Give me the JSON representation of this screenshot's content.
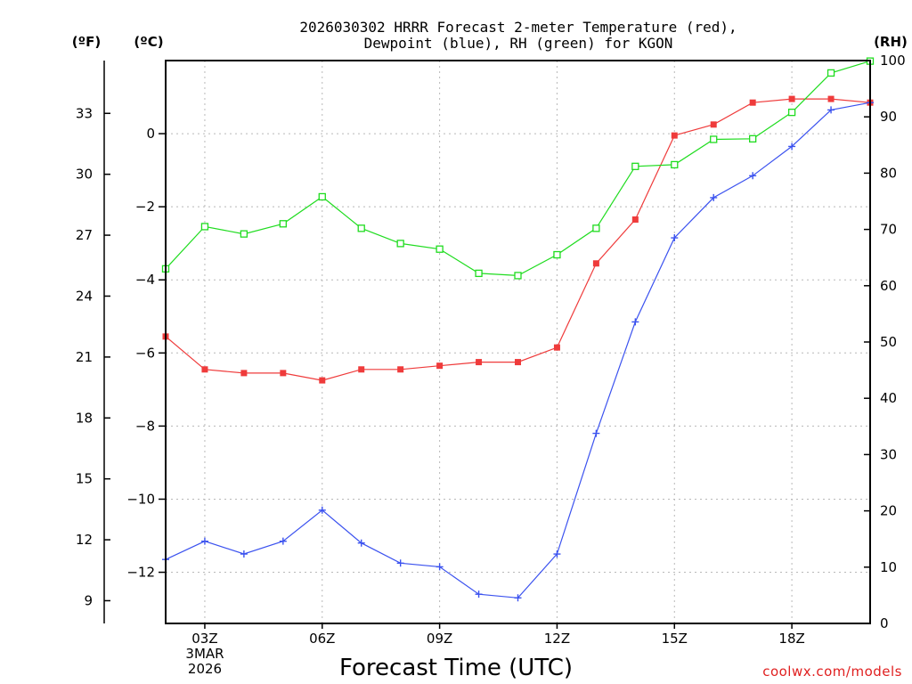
{
  "chart_data": {
    "type": "line",
    "title": [
      "2026030302 HRRR Forecast 2-meter Temperature (red),",
      "Dewpoint (blue), RH (green) for KGON"
    ],
    "xlabel": "Forecast Time (UTC)",
    "x_hours": [
      2,
      3,
      4,
      5,
      6,
      7,
      8,
      9,
      10,
      11,
      12,
      13,
      14,
      15,
      16,
      17,
      18,
      19,
      20
    ],
    "xlim": [
      2,
      20
    ],
    "x_ticks": [
      {
        "hour": 3,
        "label": "03Z"
      },
      {
        "hour": 6,
        "label": "06Z"
      },
      {
        "hour": 9,
        "label": "09Z"
      },
      {
        "hour": 12,
        "label": "12Z"
      },
      {
        "hour": 15,
        "label": "15Z"
      },
      {
        "hour": 18,
        "label": "18Z"
      }
    ],
    "x_date_label": [
      "3MAR",
      "2026"
    ],
    "celsius_axis": {
      "unit": "(ºC)",
      "ylim": [
        -13.4,
        2.0
      ],
      "ticks": [
        0,
        -2,
        -4,
        -6,
        -8,
        -10,
        -12
      ]
    },
    "fahrenheit_axis": {
      "unit": "(ºF)",
      "ticks": [
        33,
        30,
        27,
        24,
        21,
        18,
        15,
        12,
        9
      ]
    },
    "rh_axis": {
      "unit": "(RH)",
      "ylim": [
        0,
        100
      ],
      "ticks": [
        100,
        90,
        80,
        70,
        60,
        50,
        40,
        30,
        20,
        10,
        0
      ]
    },
    "series": [
      {
        "name": "Temperature",
        "axis": "celsius",
        "color": "#ef3b3b",
        "marker": "filled-square",
        "values": [
          -5.55,
          -6.45,
          -6.55,
          -6.55,
          -6.75,
          -6.45,
          -6.45,
          -6.35,
          -6.25,
          -6.25,
          -5.85,
          -3.55,
          -2.35,
          -0.05,
          0.25,
          0.85,
          0.95,
          0.95,
          0.85
        ]
      },
      {
        "name": "Dewpoint",
        "axis": "celsius",
        "color": "#3b52ef",
        "marker": "plus",
        "values": [
          -11.65,
          -11.15,
          -11.5,
          -11.15,
          -10.3,
          -11.2,
          -11.75,
          -11.85,
          -12.6,
          -12.7,
          -11.5,
          -8.2,
          -5.15,
          -2.85,
          -1.75,
          -1.15,
          -0.35,
          0.65,
          0.85
        ]
      },
      {
        "name": "RH",
        "axis": "rh",
        "color": "#1fdc1f",
        "marker": "open-square",
        "values": [
          63,
          70.5,
          69.2,
          71,
          75.8,
          70.2,
          67.5,
          66.5,
          62.2,
          61.8,
          65.5,
          70.2,
          81.2,
          81.5,
          86,
          86.1,
          90.8,
          97.8,
          99.9
        ]
      }
    ],
    "grid": true,
    "credit": "coolwx.com/models"
  }
}
